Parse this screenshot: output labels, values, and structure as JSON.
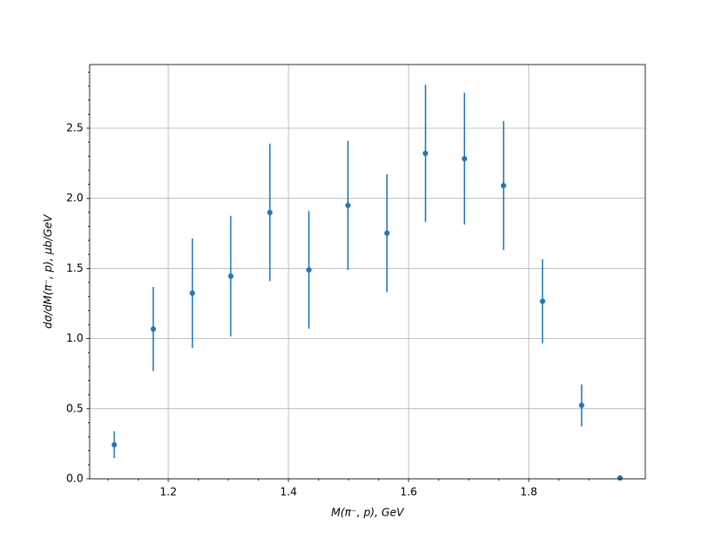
{
  "chart_data": {
    "type": "errorbar",
    "x_label": "M(π⁻, p), GeV",
    "y_label": "dσ/dM(π⁻, p), μb/GeV",
    "x": [
      1.11,
      1.175,
      1.24,
      1.304,
      1.369,
      1.434,
      1.499,
      1.564,
      1.628,
      1.693,
      1.758,
      1.823,
      1.888,
      1.952
    ],
    "values": [
      0.243,
      1.068,
      1.324,
      1.445,
      1.899,
      1.49,
      1.95,
      1.752,
      2.321,
      2.283,
      2.091,
      1.266,
      0.524,
      0.006
    ],
    "errors": [
      0.096,
      0.3,
      0.39,
      0.43,
      0.49,
      0.42,
      0.46,
      0.42,
      0.49,
      0.47,
      0.46,
      0.3,
      0.15,
      0.0
    ],
    "color": "#1f77b4",
    "xlim": [
      1.069,
      1.994
    ],
    "ylim": [
      0,
      2.954
    ],
    "xticks": [
      1.2,
      1.4,
      1.6,
      1.8
    ],
    "yticks": [
      {
        "value": 0,
        "label": "0.0"
      },
      0.5,
      {
        "value": 1,
        "label": "1.0"
      },
      1.5,
      {
        "value": 2,
        "label": "2.0"
      },
      2.5
    ],
    "x_minor_ticks": [
      1.1,
      1.15,
      1.25,
      1.3,
      1.35,
      1.45,
      1.5,
      1.55,
      1.65,
      1.7,
      1.75,
      1.85,
      1.9,
      1.95
    ],
    "y_minor_ticks": [
      0.1,
      0.2,
      0.3,
      0.4,
      0.6,
      0.7,
      0.8,
      0.9,
      1.1,
      1.2,
      1.3,
      1.4,
      1.6,
      1.7,
      1.8,
      1.9,
      2.1,
      2.2,
      2.3,
      2.4,
      2.6,
      2.7,
      2.8,
      2.9
    ],
    "grid": true
  }
}
